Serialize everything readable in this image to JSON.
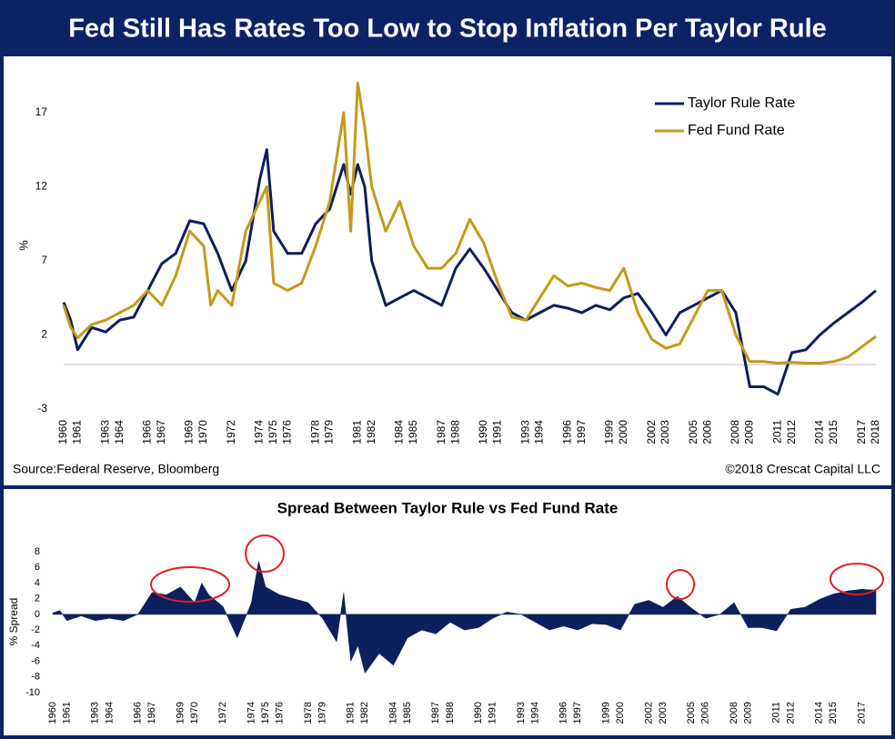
{
  "chart_data": [
    {
      "type": "line",
      "title": "Fed Still Has Rates Too Low to Stop Inflation Per Taylor Rule",
      "ylabel": "%",
      "source": "Source:Federal Reserve,  Bloomberg",
      "credit": "©2018 Crescat Capital LLC",
      "legend": "top-right",
      "x": [
        1960,
        1960.5,
        1961,
        1962,
        1963,
        1964,
        1965,
        1966,
        1967,
        1968,
        1969,
        1970,
        1970.5,
        1971,
        1972,
        1973,
        1974,
        1974.5,
        1975,
        1976,
        1977,
        1978,
        1979,
        1980,
        1980.5,
        1981,
        1981.5,
        1982,
        1983,
        1984,
        1985,
        1986,
        1987,
        1988,
        1989,
        1990,
        1991,
        1992,
        1993,
        1994,
        1995,
        1996,
        1997,
        1998,
        1999,
        2000,
        2001,
        2002,
        2003,
        2004,
        2005,
        2006,
        2007,
        2008,
        2009,
        2010,
        2011,
        2012,
        2013,
        2014,
        2015,
        2016,
        2017,
        2018
      ],
      "series": [
        {
          "name": "Taylor Rule Rate",
          "color": "#0d1f5c",
          "values": [
            4.2,
            3,
            1,
            2.5,
            2.2,
            3,
            3.2,
            5,
            6.8,
            7.5,
            9.7,
            9.5,
            8.5,
            7.5,
            5,
            7,
            12.5,
            14.5,
            9,
            7.5,
            7.5,
            9.5,
            10.5,
            13.5,
            11.5,
            13.5,
            12,
            7,
            4,
            4.5,
            5,
            4.5,
            4,
            6.5,
            7.8,
            6.5,
            5,
            3.5,
            3,
            3.5,
            4,
            3.8,
            3.5,
            4,
            3.7,
            4.5,
            4.8,
            3.5,
            2,
            3.5,
            4,
            4.5,
            5,
            3.5,
            -1.5,
            -1.5,
            -2,
            0.8,
            1,
            2,
            2.8,
            3.5,
            4.2,
            5
          ]
        },
        {
          "name": "Fed Fund Rate",
          "color": "#c49a1a",
          "values": [
            4,
            2.5,
            1.8,
            2.7,
            3,
            3.5,
            4,
            5,
            4,
            6,
            9,
            8,
            4,
            5,
            4,
            9,
            11,
            12,
            5.5,
            5,
            5.5,
            8,
            11,
            17,
            9,
            19,
            16,
            12,
            9,
            11,
            8,
            6.5,
            6.5,
            7.5,
            9.8,
            8.2,
            5.5,
            3.2,
            3,
            4.5,
            6,
            5.3,
            5.5,
            5.2,
            5,
            6.5,
            3.5,
            1.7,
            1.1,
            1.4,
            3.2,
            5,
            5,
            2,
            0.2,
            0.2,
            0.1,
            0.15,
            0.1,
            0.1,
            0.2,
            0.5,
            1.2,
            1.9
          ]
        }
      ],
      "xlim": [
        1960,
        2018
      ],
      "xticks": [
        1960,
        1961,
        1963,
        1964,
        1966,
        1967,
        1969,
        1970,
        1972,
        1974,
        1975,
        1976,
        1978,
        1979,
        1981,
        1982,
        1984,
        1985,
        1987,
        1988,
        1990,
        1991,
        1993,
        1994,
        1996,
        1997,
        1999,
        2000,
        2002,
        2003,
        2005,
        2006,
        2008,
        2009,
        2011,
        2012,
        2014,
        2015,
        2017,
        2018
      ],
      "ylim": [
        -3,
        20
      ],
      "yticks": [
        -3,
        2,
        7,
        12,
        17
      ]
    },
    {
      "type": "area",
      "title": "Spread Between Taylor Rule vs Fed Fund Rate",
      "ylabel": "% Spread",
      "color": "#0d1f5c",
      "x": [
        1960,
        1960.5,
        1961,
        1962,
        1963,
        1964,
        1965,
        1966,
        1967,
        1968,
        1969,
        1970,
        1970.5,
        1971,
        1972,
        1973,
        1974,
        1974.5,
        1975,
        1976,
        1977,
        1978,
        1979,
        1980,
        1980.5,
        1981,
        1981.5,
        1982,
        1983,
        1984,
        1985,
        1986,
        1987,
        1988,
        1989,
        1990,
        1991,
        1992,
        1993,
        1994,
        1995,
        1996,
        1997,
        1998,
        1999,
        2000,
        2001,
        2002,
        2003,
        2004,
        2005,
        2006,
        2007,
        2008,
        2009,
        2010,
        2011,
        2012,
        2013,
        2014,
        2015,
        2016,
        2017,
        2018
      ],
      "values": [
        0.2,
        0.5,
        -0.8,
        -0.2,
        -0.8,
        -0.5,
        -0.8,
        0,
        2.8,
        2.5,
        3.5,
        1.5,
        4,
        2.5,
        1,
        -3,
        1.5,
        6.8,
        3.5,
        2.5,
        2,
        1.5,
        -0.5,
        -3.5,
        2.8,
        -6,
        -4,
        -7.5,
        -5,
        -6.5,
        -3,
        -2,
        -2.5,
        -1,
        -2,
        -1.7,
        -0.5,
        0.3,
        0,
        -1,
        -2,
        -1.5,
        -2,
        -1.2,
        -1.3,
        -2,
        1.3,
        1.8,
        0.9,
        2.3,
        0.8,
        -0.5,
        0,
        1.5,
        -1.7,
        -1.7,
        -2.1,
        0.65,
        0.9,
        1.9,
        2.6,
        3,
        3.2,
        3.1
      ],
      "xlim": [
        1960,
        2018
      ],
      "xticks": [
        1960,
        1961,
        1963,
        1964,
        1966,
        1967,
        1969,
        1970,
        1972,
        1974,
        1975,
        1976,
        1978,
        1979,
        1981,
        1982,
        1984,
        1985,
        1987,
        1988,
        1990,
        1991,
        1993,
        1994,
        1996,
        1997,
        1999,
        2000,
        2002,
        2003,
        2005,
        2006,
        2008,
        2009,
        2011,
        2012,
        2014,
        2015,
        2017
      ],
      "ylim": [
        -10,
        8
      ],
      "yticks": [
        -10,
        -8,
        -6,
        -4,
        -2,
        0,
        2,
        4,
        6,
        8
      ]
    }
  ]
}
